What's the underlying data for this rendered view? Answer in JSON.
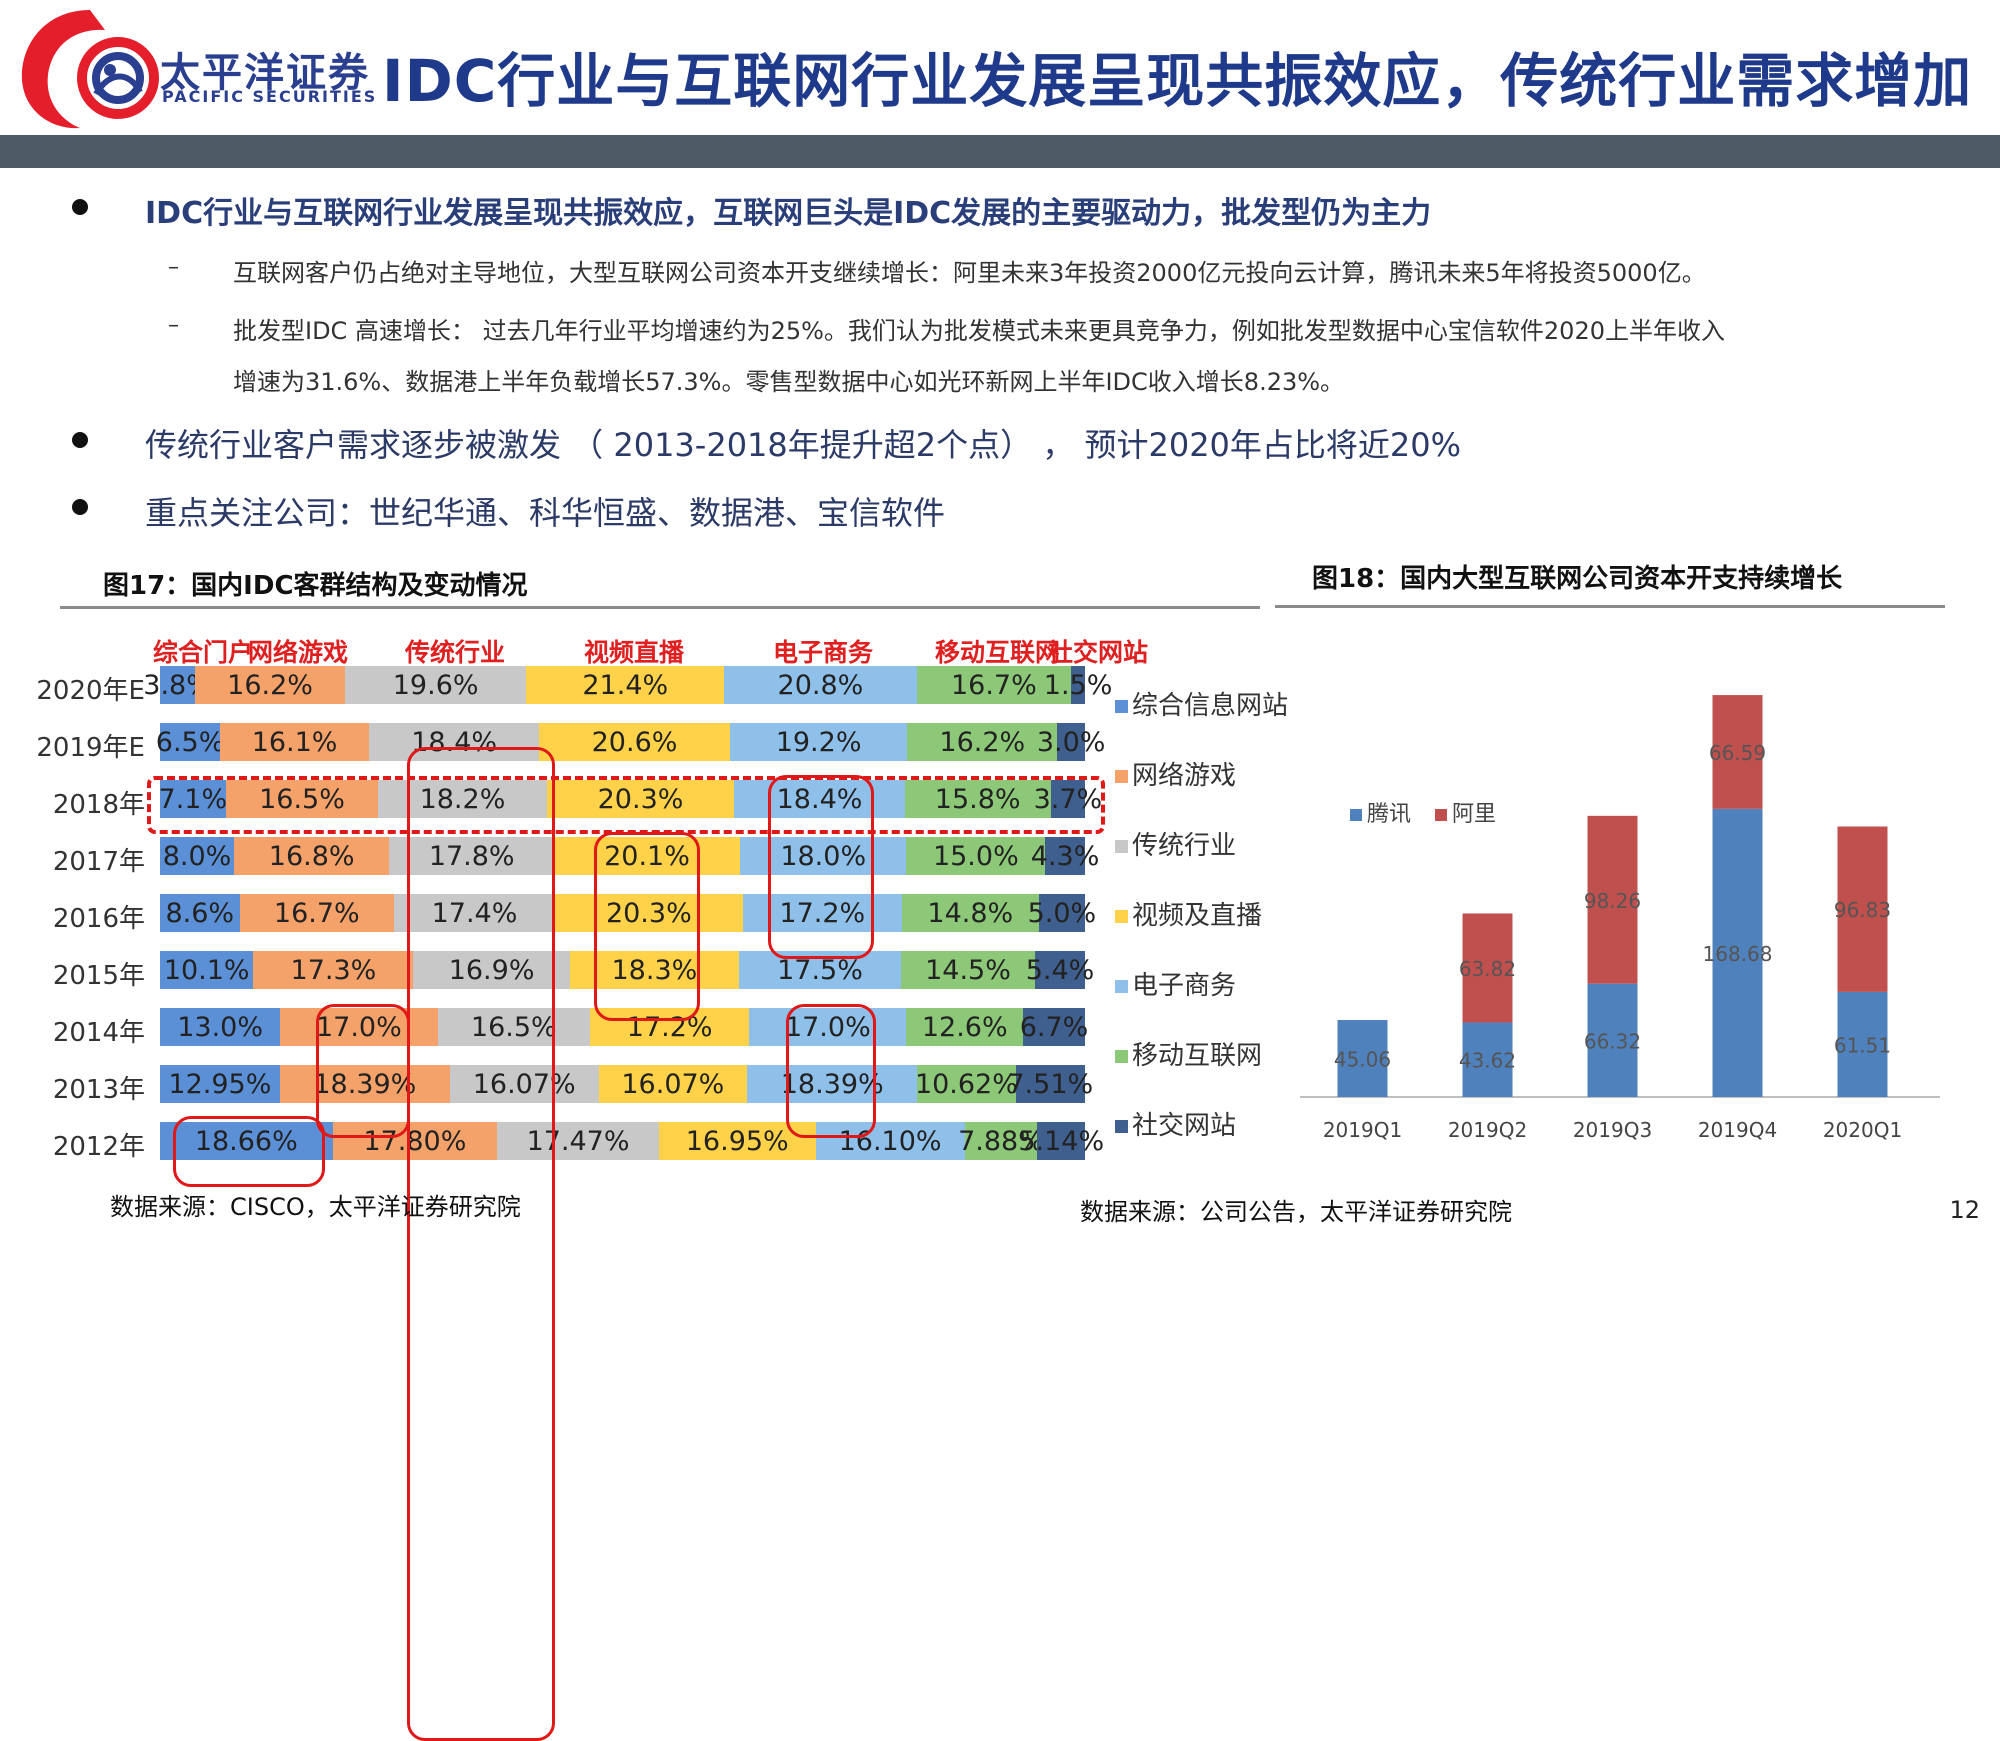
{
  "header": {
    "brand_cn": "太平洋证券",
    "brand_en": "PACIFIC SECURITIES",
    "title": "IDC行业与互联网行业发展呈现共振效应，传统行业需求增加",
    "brand_color": "#e41e2b",
    "title_color": "#1f3a8a"
  },
  "bullets": {
    "b1": "IDC行业与互联网行业发展呈现共振效应，互联网巨头是IDC发展的主要驱动力，批发型仍为主力",
    "dash": "–",
    "sub1": "互联网客户仍占绝对主导地位，大型互联网公司资本开支继续增长：阿里未来3年投资2000亿元投向云计算，腾讯未来5年将投资5000亿。",
    "sub2_line1": "批发型IDC 高速增长：  过去几年行业平均增速约为25%。我们认为批发模式未来更具竞争力，例如批发型数据中心宝信软件2020上半年收入",
    "sub2_line2": "增速为31.6%、数据港上半年负载增长57.3%。零售型数据中心如光环新网上半年IDC收入增长8.23%。",
    "b2": "传统行业客户需求逐步被激发 （ 2013-2018年提升超2个点） ，  预计2020年占比将近20%",
    "b3": "重点关注公司：世纪华通、科华恒盛、数据港、宝信软件"
  },
  "figure17": {
    "title": "图17：国内IDC客群结构及变动情况",
    "source": "数据来源：CISCO，太平洋证券研究院"
  },
  "figure18": {
    "title": "图18：国内大型互联网公司资本开支持续增长",
    "source": "数据来源：公司公告，太平洋证券研究院"
  },
  "page_number": "12",
  "chart_data": [
    {
      "type": "bar",
      "orientation": "horizontal",
      "stacked": "percent",
      "column_headers": [
        "综合门户",
        "网络游戏",
        "传统行业",
        "视频直播",
        "电子商务",
        "移动互联网",
        "社交网站"
      ],
      "categories": [
        "2020年E",
        "2019年E",
        "2018年",
        "2017年",
        "2016年",
        "2015年",
        "2014年",
        "2013年",
        "2012年"
      ],
      "series": [
        {
          "name": "综合信息网站",
          "color": "#5b8fd6",
          "values": [
            3.8,
            6.5,
            7.1,
            8.0,
            8.6,
            10.1,
            13.0,
            12.95,
            18.66
          ],
          "labels": [
            "3.8%",
            "6.5%",
            "7.1%",
            "8.0%",
            "8.6%",
            "10.1%",
            "13.0%",
            "12.95%",
            "18.66%"
          ]
        },
        {
          "name": "网络游戏",
          "color": "#f4a26a",
          "values": [
            16.2,
            16.1,
            16.5,
            16.8,
            16.7,
            17.3,
            17.0,
            18.39,
            17.8
          ],
          "labels": [
            "16.2%",
            "16.1%",
            "16.5%",
            "16.8%",
            "16.7%",
            "17.3%",
            "17.0%",
            "18.39%",
            "17.80%"
          ]
        },
        {
          "name": "传统行业",
          "color": "#c8c8c8",
          "values": [
            19.6,
            18.4,
            18.2,
            17.8,
            17.4,
            16.9,
            16.5,
            16.07,
            17.47
          ],
          "labels": [
            "19.6%",
            "18.4%",
            "18.2%",
            "17.8%",
            "17.4%",
            "16.9%",
            "16.5%",
            "16.07%",
            "17.47%"
          ]
        },
        {
          "name": "视频及直播",
          "color": "#ffd24a",
          "values": [
            21.4,
            20.6,
            20.3,
            20.1,
            20.3,
            18.3,
            17.2,
            16.07,
            16.95
          ],
          "labels": [
            "21.4%",
            "20.6%",
            "20.3%",
            "20.1%",
            "20.3%",
            "18.3%",
            "17.2%",
            "16.07%",
            "16.95%"
          ]
        },
        {
          "name": "电子商务",
          "color": "#8fc0ea",
          "values": [
            20.8,
            19.2,
            18.4,
            18.0,
            17.2,
            17.5,
            17.0,
            18.39,
            16.1
          ],
          "labels": [
            "20.8%",
            "19.2%",
            "18.4%",
            "18.0%",
            "17.2%",
            "17.5%",
            "17.0%",
            "18.39%",
            "16.10%"
          ]
        },
        {
          "name": "移动互联网",
          "color": "#8dc878",
          "values": [
            16.7,
            16.2,
            15.8,
            15.0,
            14.8,
            14.5,
            12.6,
            10.62,
            7.88
          ],
          "labels": [
            "16.7%",
            "16.2%",
            "15.8%",
            "15.0%",
            "14.8%",
            "14.5%",
            "12.6%",
            "10.62%",
            "7.88%"
          ]
        },
        {
          "name": "社交网站",
          "color": "#3f5f8f",
          "values": [
            1.5,
            3.0,
            3.7,
            4.3,
            5.0,
            5.4,
            6.7,
            7.51,
            5.14
          ],
          "labels": [
            "1.5%",
            "3.0%",
            "3.7%",
            "4.3%",
            "5.0%",
            "5.4%",
            "6.7%",
            "7.51%",
            "5.14%"
          ]
        }
      ],
      "legend": "right"
    },
    {
      "type": "bar",
      "stacked": true,
      "categories": [
        "2019Q1",
        "2019Q2",
        "2019Q3",
        "2019Q4",
        "2020Q1"
      ],
      "series": [
        {
          "name": "腾讯",
          "color": "#4f81bd",
          "values": [
            45.06,
            43.62,
            66.32,
            168.68,
            61.51
          ]
        },
        {
          "name": "阿里",
          "color": "#c0504d",
          "values": [
            null,
            63.82,
            98.26,
            66.59,
            96.83
          ]
        }
      ],
      "ylim": [
        0,
        240
      ],
      "legend": "top-left",
      "grid": false
    }
  ]
}
